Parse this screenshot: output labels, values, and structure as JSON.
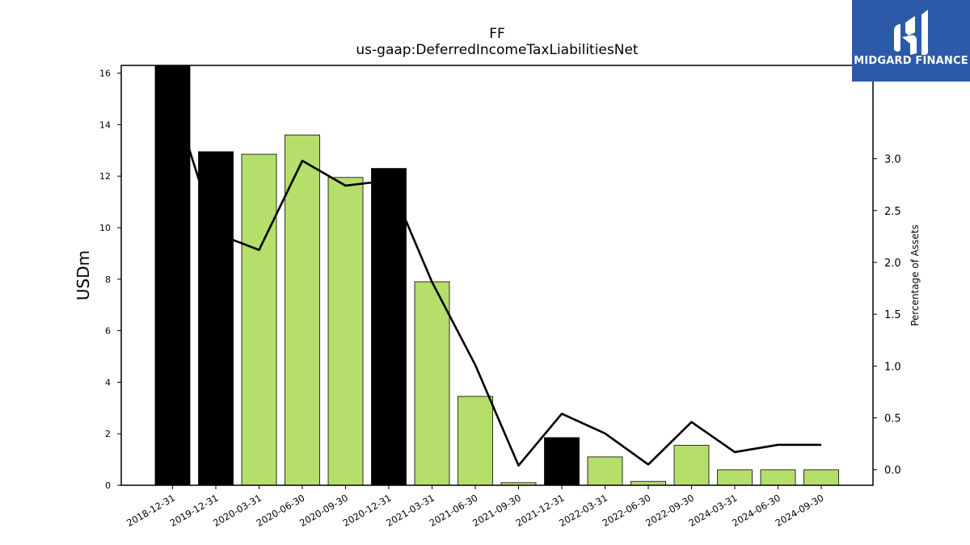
{
  "chart_data": {
    "type": "bar",
    "title": "FF",
    "subtitle": "us-gaap:DeferredIncomeTaxLiabilitiesNet",
    "ylabel": "USDm",
    "y2label": "Percentage of Assets",
    "ylim": [
      0,
      16.3
    ],
    "y2lim": [
      -0.15,
      3.9
    ],
    "yticks": [
      0,
      2,
      4,
      6,
      8,
      10,
      12,
      14,
      16
    ],
    "y2ticks": [
      "0.0",
      "0.5",
      "1.0",
      "1.5",
      "2.0",
      "2.5",
      "3.0"
    ],
    "categories": [
      "2018-12-31",
      "2019-12-31",
      "2020-03-31",
      "2020-06-30",
      "2020-09-30",
      "2020-12-31",
      "2021-03-31",
      "2021-06-30",
      "2021-09-30",
      "2021-12-31",
      "2022-03-31",
      "2022-06-30",
      "2022-09-30",
      "2024-03-31",
      "2024-06-30",
      "2024-09-30"
    ],
    "series": [
      {
        "values": [
          16.3,
          12.95,
          12.85,
          13.6,
          11.95,
          12.3,
          7.9,
          3.45,
          0.1,
          1.85,
          1.1,
          0.15,
          1.55,
          0.6,
          0.6,
          0.6
        ],
        "bar_colors": [
          "#000000",
          "#000000",
          "#b5de6b",
          "#b5de6b",
          "#b5de6b",
          "#000000",
          "#b5de6b",
          "#b5de6b",
          "#b5de6b",
          "#000000",
          "#b5de6b",
          "#b5de6b",
          "#b5de6b",
          "#b5de6b",
          "#b5de6b",
          "#b5de6b"
        ]
      },
      {
        "axis": "right",
        "type": "line",
        "color": "#000000",
        "values": [
          3.6,
          2.28,
          2.12,
          2.98,
          2.74,
          2.79,
          1.81,
          1.01,
          0.04,
          0.54,
          0.35,
          0.05,
          0.46,
          0.17,
          0.24,
          0.24
        ]
      }
    ],
    "grid": false
  },
  "logo": {
    "text": "MIDGARD FINANCE",
    "color": "#2c5aa8"
  }
}
